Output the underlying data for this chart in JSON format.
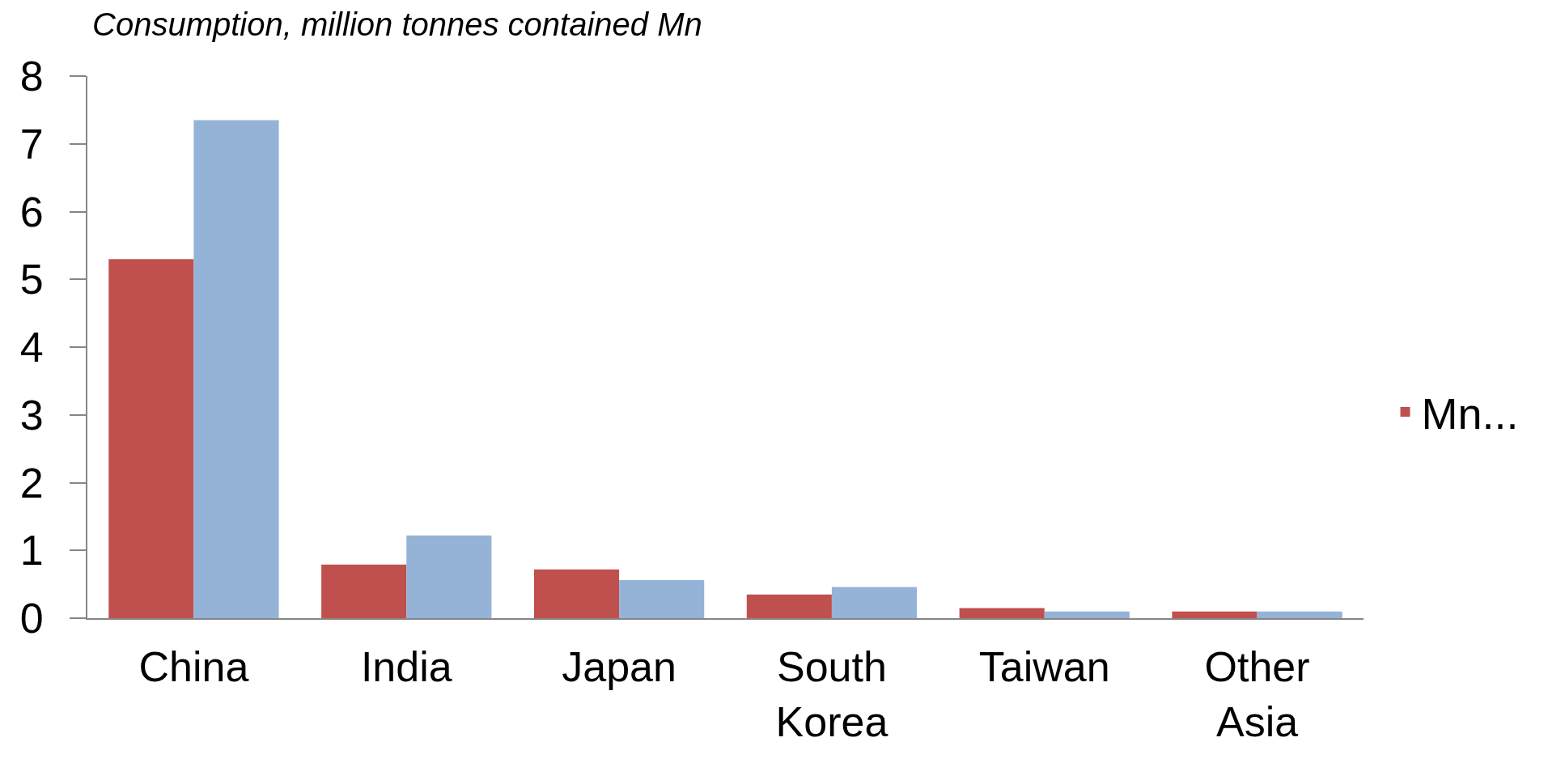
{
  "chart_data": {
    "type": "bar",
    "ylabel": "Consumption, million tonnes contained Mn",
    "categories": [
      "China",
      "India",
      "Japan",
      "South Korea",
      "Taiwan",
      "Other Asia"
    ],
    "series": [
      {
        "name": "Mn...",
        "color": "#c0504d",
        "values": [
          5.3,
          0.79,
          0.72,
          0.35,
          0.15,
          0.1
        ]
      },
      {
        "color": "#95b3d7",
        "values": [
          7.35,
          1.22,
          0.56,
          0.46,
          0.1,
          0.1
        ]
      }
    ],
    "ylim": [
      0,
      8
    ],
    "yticks": [
      0,
      1,
      2,
      3,
      4,
      5,
      6,
      7,
      8
    ],
    "grid": false,
    "legend": "right"
  }
}
